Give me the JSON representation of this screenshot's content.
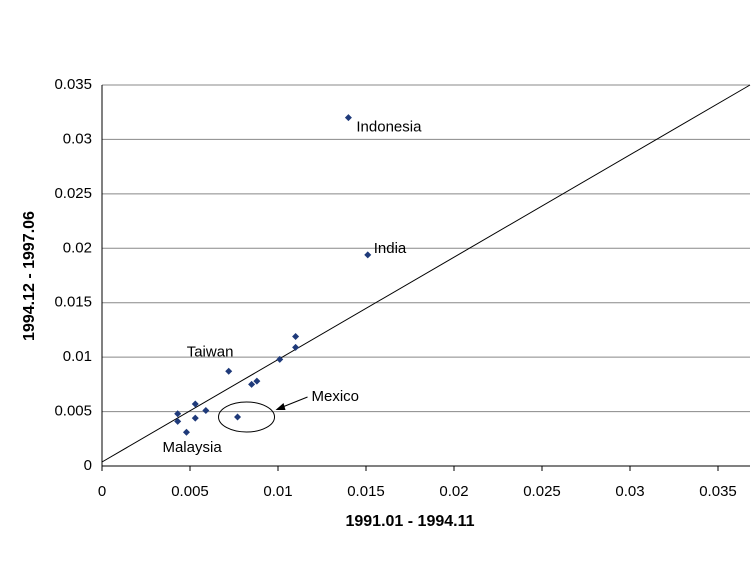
{
  "chart_data": {
    "type": "scatter",
    "x_label": "1991.01 - 1994.11",
    "y_label": "1994.12 - 1997.06",
    "x": [
      0.014,
      0.0151,
      0.011,
      0.011,
      0.0101,
      0.0088,
      0.0085,
      0.0072,
      0.0053,
      0.0059,
      0.0053,
      0.0043,
      0.0043,
      0.0048,
      0.0077
    ],
    "y": [
      0.032,
      0.0194,
      0.0119,
      0.0109,
      0.0098,
      0.0078,
      0.0075,
      0.0087,
      0.0057,
      0.0051,
      0.0044,
      0.0048,
      0.0041,
      0.0031,
      0.0045
    ],
    "point_labels": [
      "Indonesia",
      "India",
      null,
      null,
      null,
      null,
      null,
      "Taiwan",
      null,
      null,
      null,
      null,
      null,
      "Malaysia",
      "Mexico"
    ],
    "color": "#1f3a7a",
    "xlim": [
      0,
      0.035
    ],
    "ylim": [
      0,
      0.035
    ],
    "xticks": [
      0,
      0.005,
      0.01,
      0.015,
      0.02,
      0.025,
      0.03,
      0.035
    ],
    "yticks": [
      0,
      0.005,
      0.01,
      0.015,
      0.02,
      0.025,
      0.03,
      0.035
    ],
    "grid": true
  }
}
